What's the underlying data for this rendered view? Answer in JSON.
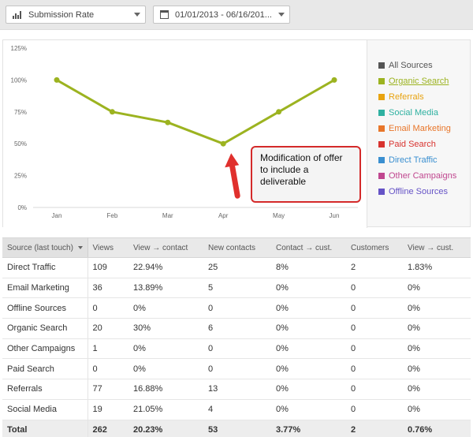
{
  "toolbar": {
    "metric_select": {
      "value": "Submission Rate",
      "icon": "bar-chart-icon"
    },
    "date_select": {
      "value": "01/01/2013 - 06/16/201...",
      "icon": "calendar-icon"
    }
  },
  "chart_data": {
    "type": "line",
    "categories": [
      "Jan",
      "Feb",
      "Mar",
      "Apr",
      "May",
      "Jun"
    ],
    "series": [
      {
        "name": "Organic Search",
        "values": [
          100,
          75,
          66.7,
          50,
          75,
          100
        ],
        "color": "#9cb320"
      }
    ],
    "y_ticks": [
      "0%",
      "25%",
      "50%",
      "75%",
      "100%",
      "125%"
    ],
    "ylim": [
      0,
      125
    ],
    "grid": false,
    "legend_position": "right"
  },
  "legend": [
    {
      "label": "All Sources",
      "color": "#555555",
      "active": false
    },
    {
      "label": "Organic Search",
      "color": "#9cb320",
      "active": true
    },
    {
      "label": "Referrals",
      "color": "#e8a310",
      "active": false
    },
    {
      "label": "Social Media",
      "color": "#2fb1a1",
      "active": false
    },
    {
      "label": "Email Marketing",
      "color": "#e8762a",
      "active": false
    },
    {
      "label": "Paid Search",
      "color": "#d8332f",
      "active": false
    },
    {
      "label": "Direct Traffic",
      "color": "#3a8fd0",
      "active": false
    },
    {
      "label": "Other Campaigns",
      "color": "#c0478f",
      "active": false
    },
    {
      "label": "Offline Sources",
      "color": "#6553c6",
      "active": false
    }
  ],
  "annotation": {
    "text": "Modification of offer to include a deliverable",
    "border_color": "#d42a2a",
    "arrow_color": "#e0302d"
  },
  "table": {
    "columns": [
      "Source (last touch)",
      "Views",
      "View → contact",
      "New contacts",
      "Contact → cust.",
      "Customers",
      "View → cust."
    ],
    "rows": [
      [
        "Direct Traffic",
        "109",
        "22.94%",
        "25",
        "8%",
        "2",
        "1.83%"
      ],
      [
        "Email Marketing",
        "36",
        "13.89%",
        "5",
        "0%",
        "0",
        "0%"
      ],
      [
        "Offline Sources",
        "0",
        "0%",
        "0",
        "0%",
        "0",
        "0%"
      ],
      [
        "Organic Search",
        "20",
        "30%",
        "6",
        "0%",
        "0",
        "0%"
      ],
      [
        "Other Campaigns",
        "1",
        "0%",
        "0",
        "0%",
        "0",
        "0%"
      ],
      [
        "Paid Search",
        "0",
        "0%",
        "0",
        "0%",
        "0",
        "0%"
      ],
      [
        "Referrals",
        "77",
        "16.88%",
        "13",
        "0%",
        "0",
        "0%"
      ],
      [
        "Social Media",
        "19",
        "21.05%",
        "4",
        "0%",
        "0",
        "0%"
      ]
    ],
    "total": [
      "Total",
      "262",
      "20.23%",
      "53",
      "3.77%",
      "2",
      "0.76%"
    ]
  }
}
